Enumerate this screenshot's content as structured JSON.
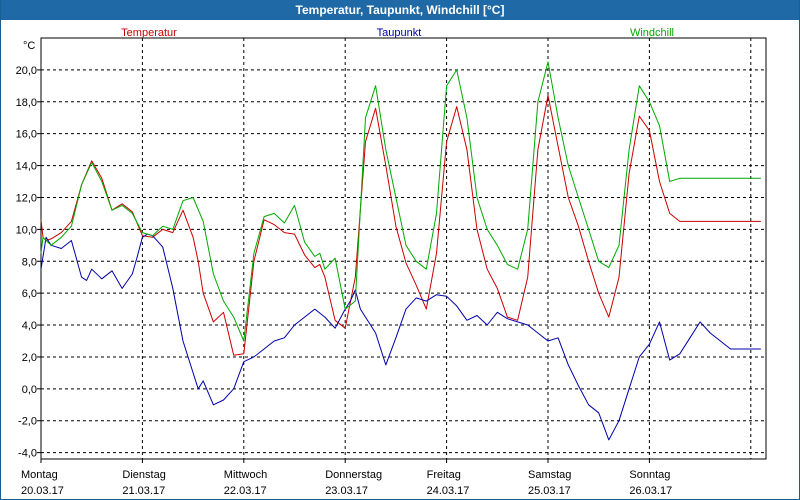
{
  "window": {
    "title": "Temperatur, Taupunkt, Windchill [°C]"
  },
  "chart_data": {
    "type": "line",
    "title": "Temperatur, Taupunkt, Windchill [°C]",
    "ylabel": "°C",
    "ylim": [
      -4.4,
      22.0
    ],
    "xlim": [
      0,
      7.15
    ],
    "y_ticks": [
      "20,0",
      "18,0",
      "16,0",
      "14,0",
      "12,0",
      "10,0",
      "8,0",
      "6,0",
      "4,0",
      "2,0",
      "0,0",
      "-2,0",
      "-4,0"
    ],
    "y_tick_values": [
      20,
      18,
      16,
      14,
      12,
      10,
      8,
      6,
      4,
      2,
      0,
      -2,
      -4
    ],
    "x_ticks": [
      {
        "day": "Montag",
        "date": "20.03.17"
      },
      {
        "day": "Dienstag",
        "date": "21.03.17"
      },
      {
        "day": "Mittwoch",
        "date": "22.03.17"
      },
      {
        "day": "Donnerstag",
        "date": "23.03.17"
      },
      {
        "day": "Freitag",
        "date": "24.03.17"
      },
      {
        "day": "Samstag",
        "date": "25.03.17"
      },
      {
        "day": "Sonntag",
        "date": "26.03.17"
      }
    ],
    "grid": true,
    "series": [
      {
        "name": "Temperatur",
        "color": "#cc0000",
        "x": [
          0,
          0.02,
          0.05,
          0.1,
          0.2,
          0.3,
          0.4,
          0.5,
          0.6,
          0.7,
          0.8,
          0.9,
          1.0,
          1.1,
          1.2,
          1.3,
          1.4,
          1.5,
          1.55,
          1.6,
          1.7,
          1.8,
          1.9,
          2.0,
          2.1,
          2.2,
          2.3,
          2.4,
          2.5,
          2.6,
          2.7,
          2.75,
          2.8,
          2.9,
          3.0,
          3.1,
          3.2,
          3.3,
          3.4,
          3.5,
          3.6,
          3.7,
          3.8,
          3.9,
          4.0,
          4.1,
          4.2,
          4.3,
          4.4,
          4.5,
          4.6,
          4.7,
          4.8,
          4.9,
          5.0,
          5.1,
          5.2,
          5.3,
          5.4,
          5.5,
          5.6,
          5.7,
          5.8,
          5.9,
          6.0,
          6.1,
          6.2,
          6.3,
          6.4,
          6.5,
          6.6,
          6.7,
          6.8,
          6.9,
          7.0,
          7.1
        ],
        "values": [
          10.6,
          9.5,
          9.3,
          9.4,
          9.8,
          10.5,
          12.8,
          14.3,
          13.2,
          11.2,
          11.6,
          11.1,
          9.6,
          9.5,
          10.0,
          9.8,
          11.2,
          9.5,
          8.0,
          6.0,
          4.2,
          4.8,
          2.1,
          2.2,
          8.0,
          10.6,
          10.3,
          9.8,
          9.7,
          8.4,
          7.6,
          7.8,
          7.0,
          4.3,
          3.8,
          7.0,
          15.5,
          17.6,
          14.0,
          10.2,
          7.9,
          6.5,
          5.0,
          8.5,
          15.5,
          17.7,
          15.0,
          10.0,
          7.5,
          6.3,
          4.5,
          4.3,
          7.0,
          15.0,
          18.4,
          15.2,
          12.0,
          10.2,
          8.0,
          6.0,
          4.5,
          7.0,
          13.5,
          17.1,
          16.2,
          13.0,
          11.0,
          10.5,
          10.5,
          10.5,
          10.5,
          10.5,
          10.5,
          10.5,
          10.5,
          10.5
        ]
      },
      {
        "name": "Taupunkt",
        "color": "#0000aa",
        "x": [
          0,
          0.05,
          0.1,
          0.2,
          0.3,
          0.4,
          0.45,
          0.5,
          0.6,
          0.7,
          0.8,
          0.9,
          0.95,
          1.0,
          1.05,
          1.1,
          1.2,
          1.3,
          1.4,
          1.5,
          1.55,
          1.6,
          1.7,
          1.8,
          1.9,
          2.0,
          2.1,
          2.2,
          2.3,
          2.4,
          2.5,
          2.6,
          2.7,
          2.8,
          2.9,
          3.0,
          3.05,
          3.1,
          3.15,
          3.2,
          3.3,
          3.4,
          3.5,
          3.6,
          3.7,
          3.8,
          3.9,
          4.0,
          4.1,
          4.2,
          4.3,
          4.4,
          4.5,
          4.6,
          4.7,
          4.8,
          4.9,
          5.0,
          5.1,
          5.2,
          5.3,
          5.4,
          5.5,
          5.6,
          5.7,
          5.8,
          5.9,
          6.0,
          6.1,
          6.2,
          6.3,
          6.4,
          6.5,
          6.6,
          6.7,
          6.8,
          6.9,
          7.0,
          7.1
        ],
        "values": [
          7.5,
          9.5,
          9.0,
          8.8,
          9.3,
          7.0,
          6.8,
          7.5,
          6.9,
          7.4,
          6.3,
          7.2,
          8.3,
          9.5,
          9.7,
          9.6,
          8.9,
          6.3,
          3.0,
          1.0,
          0.0,
          0.5,
          -1.0,
          -0.7,
          0.0,
          1.7,
          2.0,
          2.5,
          3.0,
          3.2,
          4.0,
          4.5,
          5.0,
          4.5,
          3.8,
          5.0,
          5.5,
          6.2,
          5.0,
          4.5,
          3.5,
          1.5,
          3.2,
          5.0,
          5.7,
          5.5,
          5.9,
          5.8,
          5.2,
          4.3,
          4.6,
          4.0,
          4.8,
          4.4,
          4.2,
          4.0,
          3.5,
          3.0,
          3.2,
          1.5,
          0.2,
          -1.0,
          -1.5,
          -3.2,
          -2.0,
          0.0,
          2.0,
          2.8,
          4.2,
          1.8,
          2.2,
          3.2,
          4.2,
          3.5,
          3.0,
          2.5,
          2.5,
          2.5,
          2.5
        ]
      },
      {
        "name": "Windchill",
        "color": "#00aa00",
        "x": [
          0,
          0.02,
          0.05,
          0.1,
          0.2,
          0.3,
          0.4,
          0.5,
          0.6,
          0.7,
          0.8,
          0.9,
          1.0,
          1.1,
          1.2,
          1.3,
          1.4,
          1.5,
          1.6,
          1.7,
          1.8,
          1.9,
          2.0,
          2.1,
          2.2,
          2.3,
          2.4,
          2.5,
          2.6,
          2.7,
          2.75,
          2.8,
          2.9,
          3.0,
          3.1,
          3.2,
          3.3,
          3.4,
          3.5,
          3.6,
          3.7,
          3.8,
          3.9,
          4.0,
          4.1,
          4.2,
          4.3,
          4.4,
          4.5,
          4.6,
          4.7,
          4.8,
          4.9,
          5.0,
          5.1,
          5.2,
          5.3,
          5.4,
          5.5,
          5.6,
          5.7,
          5.8,
          5.9,
          6.0,
          6.1,
          6.2,
          6.3,
          6.4,
          6.5,
          6.6,
          6.7,
          6.8,
          6.9,
          7.0,
          7.1
        ],
        "values": [
          8.5,
          9.5,
          9.3,
          9.0,
          9.5,
          10.2,
          12.8,
          14.2,
          13.0,
          11.2,
          11.5,
          11.0,
          9.8,
          9.6,
          10.2,
          10.0,
          11.8,
          12.0,
          10.5,
          7.2,
          5.5,
          4.5,
          3.0,
          8.5,
          10.8,
          11.0,
          10.4,
          11.5,
          9.2,
          8.3,
          8.5,
          7.5,
          8.2,
          5.0,
          5.5,
          17.0,
          19.0,
          15.0,
          12.0,
          9.0,
          8.0,
          7.5,
          11.0,
          19.0,
          20.0,
          17.0,
          12.0,
          10.0,
          9.0,
          7.8,
          7.5,
          10.0,
          18.0,
          20.5,
          17.0,
          14.0,
          12.0,
          10.0,
          8.0,
          7.6,
          9.0,
          15.0,
          19.0,
          18.0,
          16.5,
          13.0,
          13.2,
          13.2,
          13.2,
          13.2,
          13.2,
          13.2,
          13.2,
          13.2,
          13.2
        ]
      }
    ]
  }
}
